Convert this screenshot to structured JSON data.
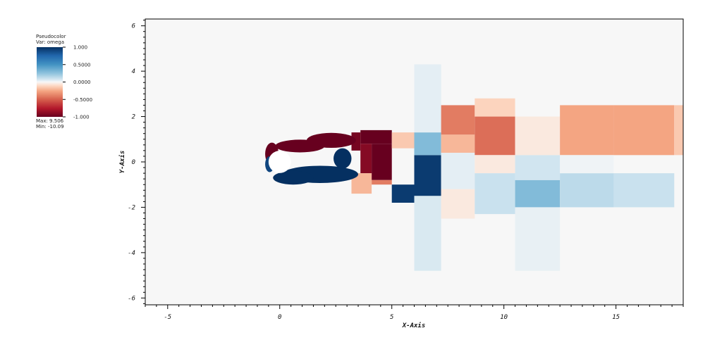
{
  "legend": {
    "title": "Pseudocolor",
    "var_label": "Var: omega",
    "tick_labels": [
      "1.000",
      "0.5000",
      "0.0000",
      "-0.5000",
      "-1.000"
    ],
    "tick_values": [
      1.0,
      0.5,
      0.0,
      -0.5,
      -1.0
    ],
    "max_label": "Max: 9.506",
    "min_label": "Min: -10.09",
    "colors": {
      "positive": "#053061",
      "mid": "#f7f7f7",
      "negative": "#67001f"
    }
  },
  "chart_data": {
    "type": "heatmap",
    "title": "",
    "xlabel": "X-Axis",
    "ylabel": "Y-Axis",
    "xlim": [
      -6,
      18
    ],
    "ylim": [
      -6.3,
      6.3
    ],
    "x_ticks": [
      -5,
      0,
      5,
      10,
      15
    ],
    "y_ticks": [
      -6,
      -4,
      -2,
      0,
      2,
      4,
      6
    ],
    "x_tick_labels": [
      "-5",
      "0",
      "5",
      "10",
      "15"
    ],
    "y_tick_labels": [
      "-6",
      "-4",
      "-2",
      "0",
      "2",
      "4",
      "6"
    ],
    "colormap": "RdBu",
    "clip": [
      -1,
      1
    ],
    "obstacle": {
      "shape": "circle",
      "center": [
        0,
        0
      ],
      "radius": 0.5
    },
    "background_value": 0,
    "bands": [
      {
        "x0": 3.6,
        "x1": 5.0,
        "y0": 0.8,
        "y1": 1.4,
        "value": -1.0
      },
      {
        "x0": 4.1,
        "x1": 5.0,
        "y0": -0.8,
        "y1": 0.8,
        "value": -1.0
      },
      {
        "x0": 3.6,
        "x1": 4.1,
        "y0": -0.5,
        "y1": 0.8,
        "value": -0.9
      },
      {
        "x0": 3.2,
        "x1": 3.6,
        "y0": 0.5,
        "y1": 1.3,
        "value": -0.95
      },
      {
        "x0": 4.1,
        "x1": 5.0,
        "y0": -1.0,
        "y1": -0.8,
        "value": -0.4
      },
      {
        "x0": 3.2,
        "x1": 4.1,
        "y0": -1.4,
        "y1": -0.5,
        "value": -0.2
      },
      {
        "x0": 5.0,
        "x1": 6.0,
        "y0": -1.8,
        "y1": -1.0,
        "value": 0.95
      },
      {
        "x0": 5.0,
        "x1": 6.0,
        "y0": 0.6,
        "y1": 1.3,
        "value": -0.15
      },
      {
        "x0": 6.0,
        "x1": 7.2,
        "y0": -1.5,
        "y1": 0.3,
        "value": 0.95
      },
      {
        "x0": 6.0,
        "x1": 7.2,
        "y0": 0.3,
        "y1": 1.3,
        "value": 0.3
      },
      {
        "x0": 6.0,
        "x1": 7.2,
        "y0": 1.3,
        "y1": 4.3,
        "value": 0.05
      },
      {
        "x0": 6.0,
        "x1": 7.2,
        "y0": -4.8,
        "y1": -1.5,
        "value": 0.08
      },
      {
        "x0": 7.2,
        "x1": 8.7,
        "y0": 1.2,
        "y1": 2.5,
        "value": -0.4
      },
      {
        "x0": 7.2,
        "x1": 8.7,
        "y0": 0.4,
        "y1": 1.2,
        "value": -0.2
      },
      {
        "x0": 7.2,
        "x1": 8.7,
        "y0": -1.2,
        "y1": 0.4,
        "value": 0.05
      },
      {
        "x0": 7.2,
        "x1": 8.7,
        "y0": -2.5,
        "y1": -1.2,
        "value": -0.05
      },
      {
        "x0": 8.7,
        "x1": 10.5,
        "y0": 0.3,
        "y1": 2.0,
        "value": -0.45
      },
      {
        "x0": 8.7,
        "x1": 10.5,
        "y0": 2.0,
        "y1": 2.8,
        "value": -0.12
      },
      {
        "x0": 8.7,
        "x1": 10.5,
        "y0": -0.5,
        "y1": 0.3,
        "value": -0.05
      },
      {
        "x0": 8.7,
        "x1": 10.5,
        "y0": -2.3,
        "y1": -0.5,
        "value": 0.12
      },
      {
        "x0": 10.5,
        "x1": 12.5,
        "y0": -2.0,
        "y1": -0.8,
        "value": 0.3
      },
      {
        "x0": 10.5,
        "x1": 12.5,
        "y0": -0.8,
        "y1": 0.3,
        "value": 0.1
      },
      {
        "x0": 10.5,
        "x1": 12.5,
        "y0": 0.3,
        "y1": 2.0,
        "value": -0.05
      },
      {
        "x0": 10.5,
        "x1": 12.5,
        "y0": -4.8,
        "y1": -2.0,
        "value": 0.04
      },
      {
        "x0": 12.5,
        "x1": 14.9,
        "y0": 0.3,
        "y1": 2.5,
        "value": -0.25
      },
      {
        "x0": 12.5,
        "x1": 14.9,
        "y0": -2.0,
        "y1": -0.5,
        "value": 0.15
      },
      {
        "x0": 12.5,
        "x1": 14.9,
        "y0": -0.5,
        "y1": 0.3,
        "value": 0.02
      },
      {
        "x0": 14.9,
        "x1": 17.6,
        "y0": 0.3,
        "y1": 2.5,
        "value": -0.25
      },
      {
        "x0": 14.9,
        "x1": 17.6,
        "y0": -2.0,
        "y1": -0.5,
        "value": 0.12
      },
      {
        "x0": 17.6,
        "x1": 18.0,
        "y0": 0.3,
        "y1": 2.5,
        "value": -0.15
      }
    ],
    "near_wake": [
      {
        "cx": 0.9,
        "cy": 0.7,
        "rx": 1.1,
        "ry": 0.28,
        "value": -1.0
      },
      {
        "cx": 2.3,
        "cy": 0.95,
        "rx": 1.1,
        "ry": 0.33,
        "value": -1.0
      },
      {
        "cx": -0.35,
        "cy": 0.35,
        "rx": 0.3,
        "ry": 0.5,
        "value": -1.0
      },
      {
        "cx": -0.45,
        "cy": -0.1,
        "rx": 0.2,
        "ry": 0.35,
        "value": 0.9
      },
      {
        "cx": 1.8,
        "cy": -0.55,
        "rx": 1.7,
        "ry": 0.38,
        "value": 1.0
      },
      {
        "cx": 2.8,
        "cy": 0.15,
        "rx": 0.4,
        "ry": 0.45,
        "value": 1.0
      },
      {
        "cx": 0.6,
        "cy": -0.7,
        "rx": 0.9,
        "ry": 0.3,
        "value": 1.0
      }
    ]
  }
}
